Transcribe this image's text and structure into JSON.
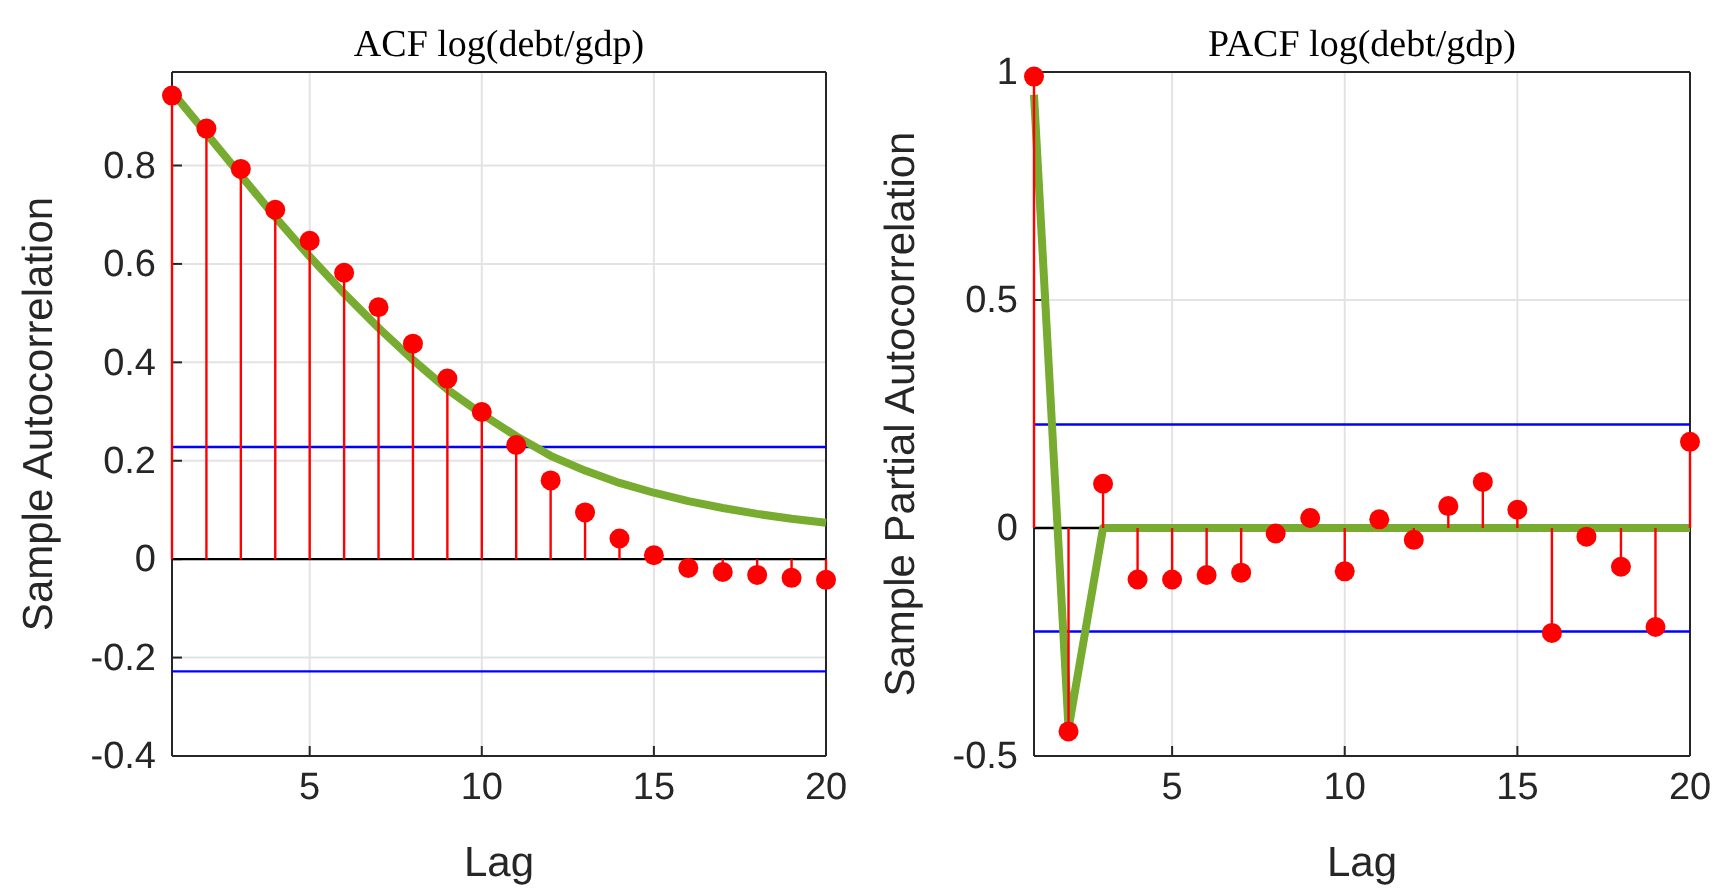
{
  "chart_data": [
    {
      "type": "lollipop",
      "title": "ACF log(debt/gdp)",
      "xlabel": "Lag",
      "ylabel": "Sample Autocorrelation",
      "xlim": [
        1,
        20
      ],
      "xticks": [
        5,
        10,
        15,
        20
      ],
      "ylim": [
        -0.4,
        0.99
      ],
      "yticks": [
        -0.4,
        -0.2,
        0,
        0.2,
        0.4,
        0.6,
        0.8
      ],
      "grid": true,
      "x": [
        1,
        2,
        3,
        4,
        5,
        6,
        7,
        8,
        9,
        10,
        11,
        12,
        13,
        14,
        15,
        16,
        17,
        18,
        19,
        20
      ],
      "series": [
        {
          "color": "#ff0000",
          "marker": "circle",
          "values": [
            0.942,
            0.875,
            0.793,
            0.71,
            0.647,
            0.582,
            0.512,
            0.438,
            0.367,
            0.299,
            0.232,
            0.16,
            0.095,
            0.042,
            0.008,
            -0.018,
            -0.026,
            -0.032,
            -0.038,
            -0.042
          ]
        },
        {
          "type": "line",
          "color": "#77ac30",
          "marker": "none",
          "line_style": "solid",
          "values": [
            0.95,
            0.865,
            0.78,
            0.695,
            0.615,
            0.54,
            0.47,
            0.405,
            0.345,
            0.295,
            0.25,
            0.21,
            0.18,
            0.155,
            0.135,
            0.118,
            0.104,
            0.092,
            0.082,
            0.074
          ]
        }
      ],
      "ref_lines": [
        {
          "axis": "y",
          "value": 0,
          "color": "#000000"
        },
        {
          "axis": "y",
          "value": 0.228,
          "color": "#0000ff"
        },
        {
          "axis": "y",
          "value": -0.228,
          "color": "#0000ff"
        }
      ]
    },
    {
      "type": "lollipop",
      "title": "PACF log(debt/gdp)",
      "xlabel": "Lag",
      "ylabel": "Sample Partial Autocorrelation",
      "xlim": [
        1,
        20
      ],
      "xticks": [
        5,
        10,
        15,
        20
      ],
      "ylim": [
        -0.5,
        1
      ],
      "yticks": [
        -0.5,
        0,
        0.5,
        1
      ],
      "grid": true,
      "x": [
        1,
        2,
        3,
        4,
        5,
        6,
        7,
        8,
        9,
        10,
        11,
        12,
        13,
        14,
        15,
        16,
        17,
        18,
        19,
        20
      ],
      "series": [
        {
          "color": "#ff0000",
          "marker": "circle",
          "values": [
            0.99,
            -0.446,
            0.097,
            -0.113,
            -0.113,
            -0.103,
            -0.098,
            -0.012,
            0.022,
            -0.095,
            0.019,
            -0.026,
            0.048,
            0.101,
            0.04,
            -0.23,
            -0.019,
            -0.085,
            -0.217,
            0.189
          ]
        },
        {
          "type": "line",
          "color": "#77ac30",
          "marker": "none",
          "line_style": "solid",
          "values": [
            0.95,
            -0.44,
            0,
            0,
            0,
            0,
            0,
            0,
            0,
            0,
            0,
            0,
            0,
            0,
            0,
            0,
            0,
            0,
            0,
            0
          ]
        }
      ],
      "ref_lines": [
        {
          "axis": "y",
          "value": 0,
          "color": "#000000"
        },
        {
          "axis": "y",
          "value": 0.227,
          "color": "#0000ff"
        },
        {
          "axis": "y",
          "value": -0.227,
          "color": "#0000ff"
        }
      ]
    }
  ]
}
